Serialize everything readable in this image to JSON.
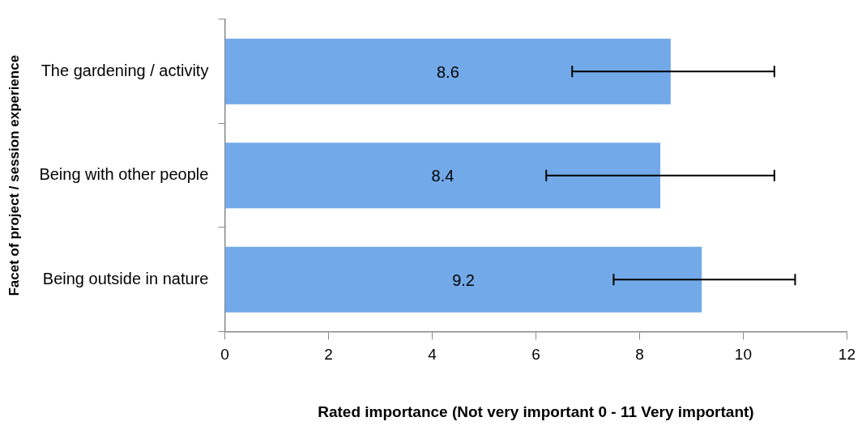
{
  "chart_data": {
    "type": "bar",
    "orientation": "horizontal",
    "xlabel": "Rated importance (Not very important 0 - 11 Very important)",
    "ylabel": "Facet of project / session experience",
    "categories": [
      "The gardening / activity",
      "Being with other people",
      "Being outside in nature"
    ],
    "values": [
      8.6,
      8.4,
      9.2
    ],
    "errors": [
      [
        6.7,
        10.6
      ],
      [
        6.2,
        10.6
      ],
      [
        7.5,
        11.0
      ]
    ],
    "color": "#72a9e8",
    "data_labels": true,
    "xlim": [
      0,
      12
    ],
    "xticks": [
      0,
      2,
      4,
      6,
      8,
      10,
      12
    ]
  }
}
